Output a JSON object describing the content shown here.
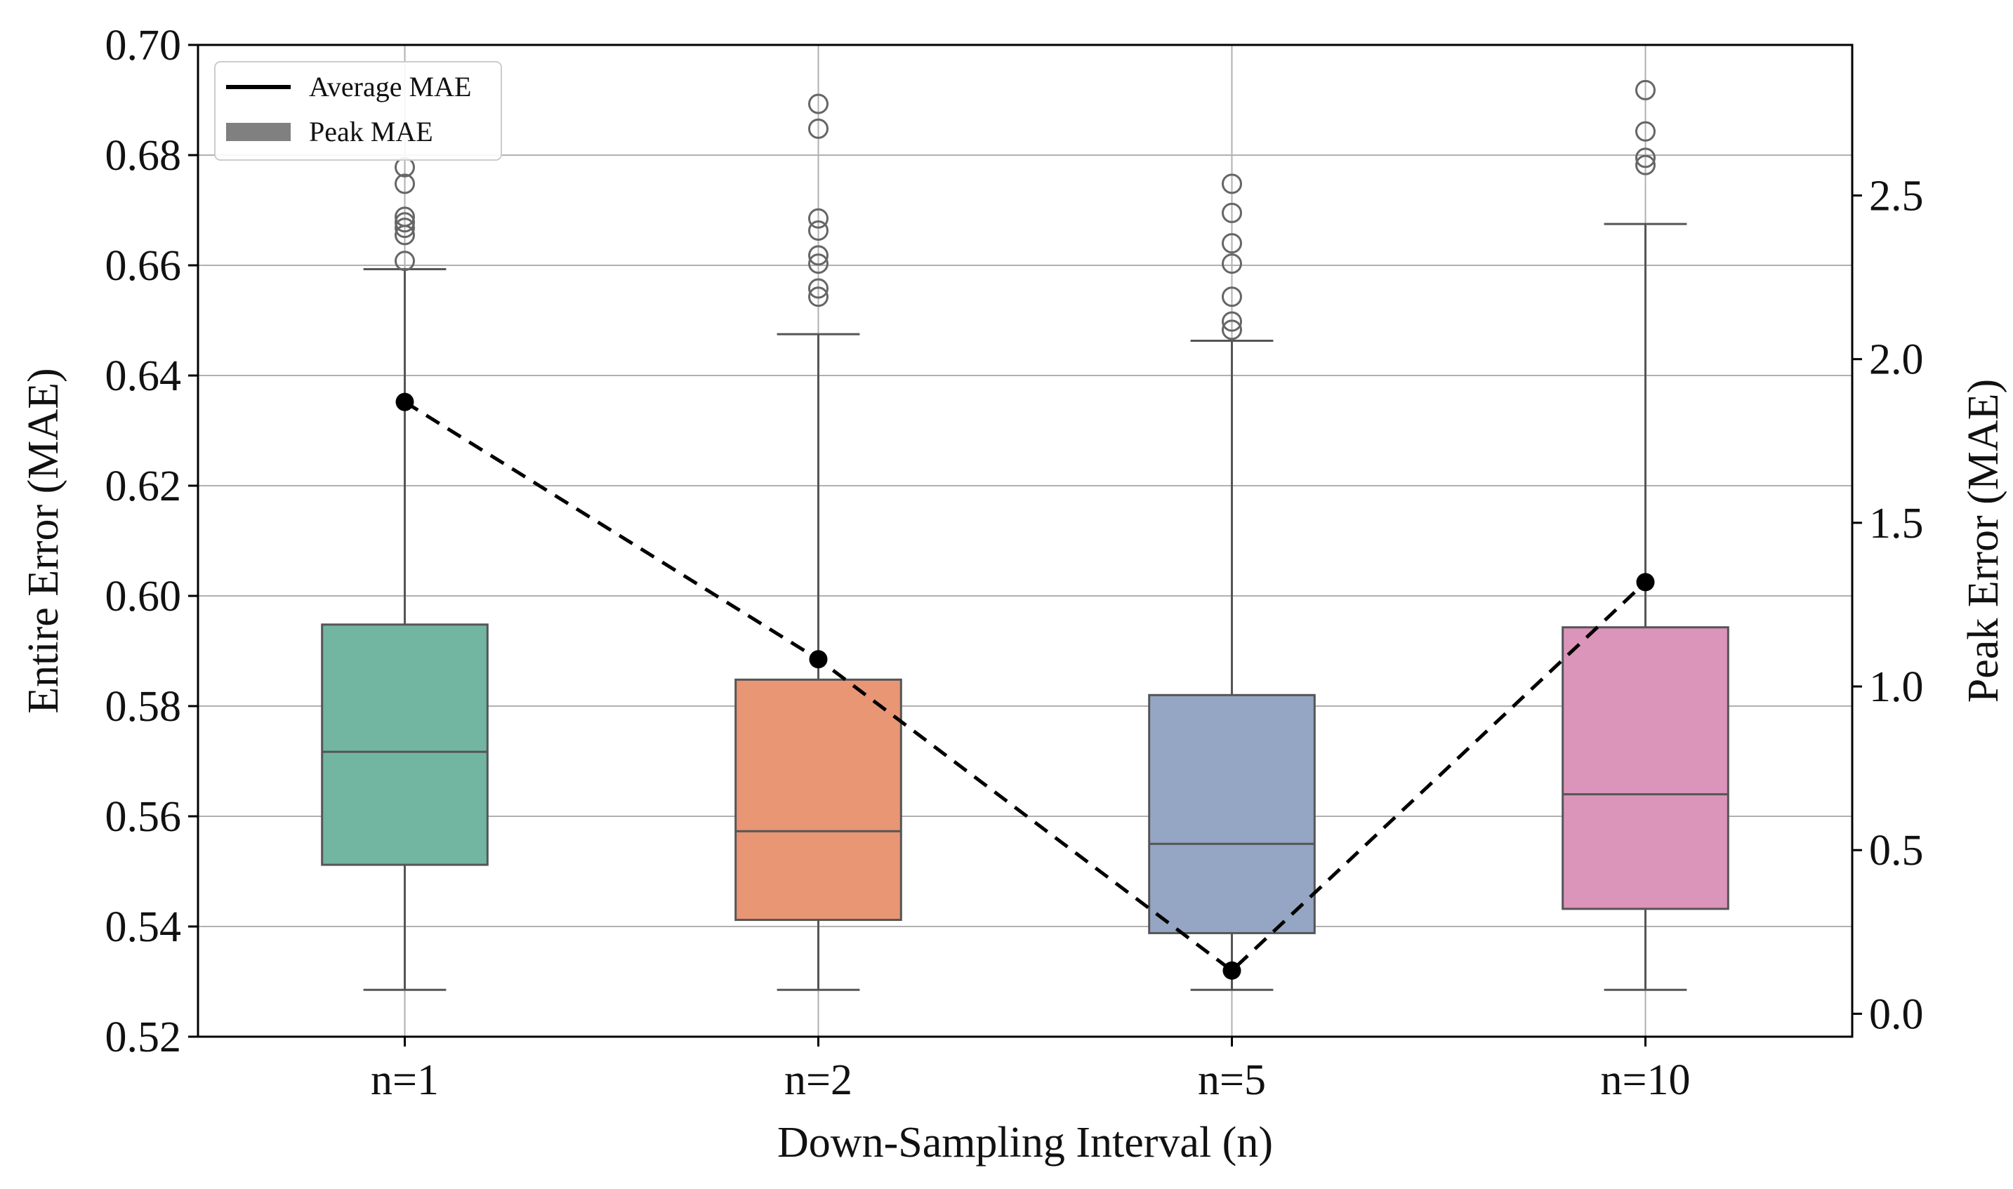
{
  "chart_data": {
    "type": "box",
    "xlabel": "Down-Sampling Interval (n)",
    "ylabel_left": "Entire Error (MAE)",
    "ylabel_right": "Peak Error (MAE)",
    "categories": [
      "n=1",
      "n=2",
      "n=5",
      "n=10"
    ],
    "left_axis": {
      "ylim": [
        0.52,
        0.7
      ],
      "ticks": [
        0.52,
        0.54,
        0.56,
        0.58,
        0.6,
        0.62,
        0.64,
        0.66,
        0.68,
        0.7
      ],
      "tick_labels": [
        "0.52",
        "0.54",
        "0.56",
        "0.58",
        "0.60",
        "0.62",
        "0.64",
        "0.66",
        "0.68",
        "0.70"
      ]
    },
    "right_axis": {
      "ylim": [
        -0.07,
        2.96
      ],
      "ticks": [
        0.0,
        0.5,
        1.0,
        1.5,
        2.0,
        2.5
      ],
      "tick_labels": [
        "0.0",
        "0.5",
        "1.0",
        "1.5",
        "2.0",
        "2.5"
      ]
    },
    "grid": true,
    "legend": {
      "location": "top-left",
      "entries": [
        {
          "label": "Average MAE",
          "style": "line",
          "color": "#000000"
        },
        {
          "label": "Peak MAE",
          "style": "patch",
          "color": "#808080"
        }
      ]
    },
    "boxes": [
      {
        "category": "n=1",
        "whisker_low": 0.5285,
        "q1": 0.5512,
        "median": 0.5717,
        "q3": 0.5948,
        "whisker_high": 0.6593,
        "outliers": [
          0.6608,
          0.6655,
          0.6668,
          0.6678,
          0.6688,
          0.6748,
          0.6778
        ],
        "color": "#72b6a1"
      },
      {
        "category": "n=2",
        "whisker_low": 0.5285,
        "q1": 0.5412,
        "median": 0.5573,
        "q3": 0.5848,
        "whisker_high": 0.6475,
        "outliers": [
          0.6543,
          0.6558,
          0.6603,
          0.6618,
          0.6663,
          0.6685,
          0.6848,
          0.6893
        ],
        "color": "#e99675"
      },
      {
        "category": "n=5",
        "whisker_low": 0.5285,
        "q1": 0.5388,
        "median": 0.555,
        "q3": 0.582,
        "whisker_high": 0.6463,
        "outliers": [
          0.6483,
          0.6498,
          0.6543,
          0.6603,
          0.664,
          0.6695,
          0.6748
        ],
        "color": "#95a6c4"
      },
      {
        "category": "n=10",
        "whisker_low": 0.5285,
        "q1": 0.5432,
        "median": 0.564,
        "q3": 0.5943,
        "whisker_high": 0.6675,
        "outliers": [
          0.6782,
          0.6795,
          0.6843,
          0.6918
        ],
        "color": "#db94ba"
      }
    ],
    "average_mae_line": {
      "axis": "left",
      "style": "dashed",
      "color": "#000000",
      "values": [
        0.6352,
        0.5885,
        0.532,
        0.6025
      ]
    }
  }
}
